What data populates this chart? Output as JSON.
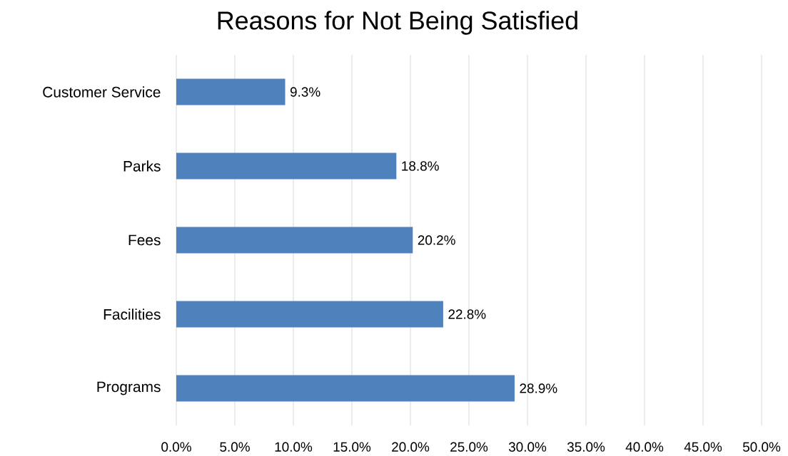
{
  "chart_data": {
    "type": "bar",
    "orientation": "horizontal",
    "title": "Reasons for Not Being Satisfied",
    "categories": [
      "Customer Service",
      "Parks",
      "Fees",
      "Facilities",
      "Programs"
    ],
    "values": [
      9.3,
      18.8,
      20.2,
      22.8,
      28.9
    ],
    "value_labels": [
      "9.3%",
      "18.8%",
      "20.2%",
      "22.8%",
      "28.9%"
    ],
    "color": "#4f81bd",
    "xlim": [
      0,
      50
    ],
    "xticks": [
      {
        "value": 0,
        "label": "0.0%"
      },
      {
        "value": 5,
        "label": "5.0%"
      },
      {
        "value": 10,
        "label": "10.0%"
      },
      {
        "value": 15,
        "label": "15.0%"
      },
      {
        "value": 20,
        "label": "20.0%"
      },
      {
        "value": 25,
        "label": "25.0%"
      },
      {
        "value": 30,
        "label": "30.0%"
      },
      {
        "value": 35,
        "label": "35.0%"
      },
      {
        "value": 40,
        "label": "40.0%"
      },
      {
        "value": 45,
        "label": "45.0%"
      },
      {
        "value": 50,
        "label": "50.0%"
      }
    ],
    "grid": "x"
  }
}
